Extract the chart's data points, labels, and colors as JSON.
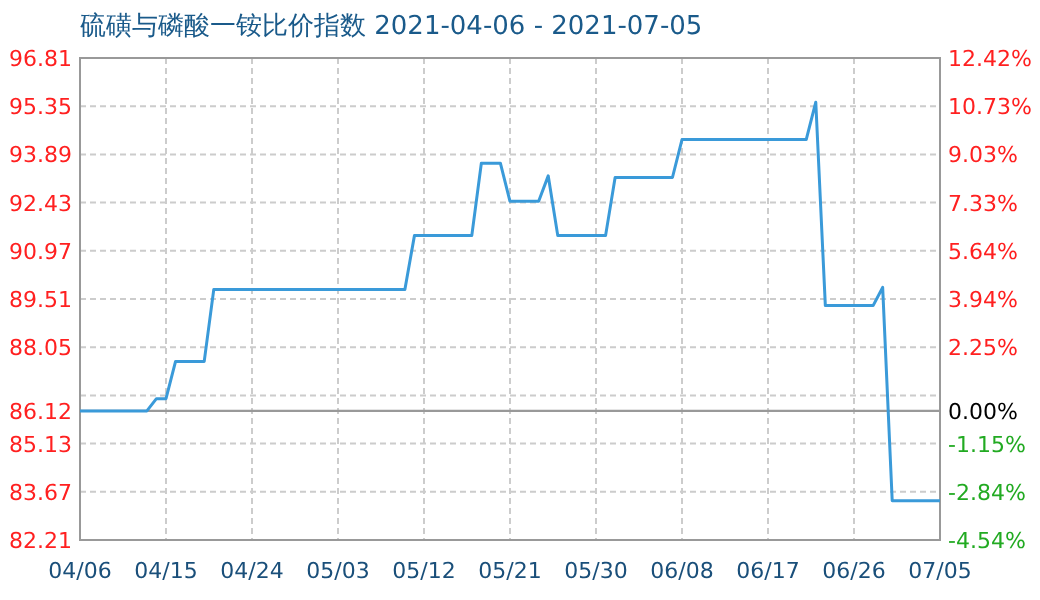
{
  "chart_data": {
    "type": "line",
    "title": "硫磺与磷酸一铵比价指数 2021-04-06 - 2021-07-05",
    "x": [
      "2021-04-06",
      "2021-04-13",
      "2021-04-14",
      "2021-04-15",
      "2021-04-16",
      "2021-04-19",
      "2021-04-20",
      "2021-05-10",
      "2021-05-11",
      "2021-05-17",
      "2021-05-18",
      "2021-05-20",
      "2021-05-21",
      "2021-05-24",
      "2021-05-25",
      "2021-05-26",
      "2021-05-31",
      "2021-06-01",
      "2021-06-07",
      "2021-06-08",
      "2021-06-21",
      "2021-06-22",
      "2021-06-23",
      "2021-06-28",
      "2021-06-29",
      "2021-06-30",
      "2021-07-05"
    ],
    "series": [
      {
        "color": "#3a9ad9",
        "values": [
          86.12,
          86.12,
          86.49,
          86.49,
          87.62,
          87.62,
          89.8,
          89.8,
          91.43,
          91.43,
          93.62,
          93.62,
          92.47,
          92.47,
          93.24,
          91.43,
          91.43,
          93.19,
          93.19,
          94.34,
          94.34,
          95.47,
          89.31,
          89.31,
          89.86,
          83.4,
          83.4
        ]
      }
    ],
    "xlim": [
      "2021-04-06",
      "2021-07-05"
    ],
    "xticks": [
      {
        "value": "2021-04-06",
        "label": "04/06"
      },
      {
        "value": "2021-04-15",
        "label": "04/15"
      },
      {
        "value": "2021-04-24",
        "label": "04/24"
      },
      {
        "value": "2021-05-03",
        "label": "05/03"
      },
      {
        "value": "2021-05-12",
        "label": "05/12"
      },
      {
        "value": "2021-05-21",
        "label": "05/21"
      },
      {
        "value": "2021-05-30",
        "label": "05/30"
      },
      {
        "value": "2021-06-08",
        "label": "06/08"
      },
      {
        "value": "2021-06-17",
        "label": "06/17"
      },
      {
        "value": "2021-06-26",
        "label": "06/26"
      },
      {
        "value": "2021-07-05",
        "label": "07/05"
      }
    ],
    "ylim": [
      82.21,
      96.81
    ],
    "yticks": [
      82.21,
      83.67,
      85.13,
      {
        "value": 86.12,
        "label": "86.12"
      },
      {
        "value": 86.59,
        "label": null
      },
      88.05,
      89.51,
      90.97,
      92.43,
      93.89,
      95.35,
      96.81
    ],
    "y2lim": [
      -4.54,
      12.42
    ],
    "y2ticks": [
      {
        "value": -4.54,
        "label": "-4.54%"
      },
      {
        "value": -2.84,
        "label": "-2.84%"
      },
      {
        "value": -1.15,
        "label": "-1.15%"
      },
      {
        "value": 0,
        "label": "0.00%"
      },
      {
        "value": 2.25,
        "label": "2.25%"
      },
      {
        "value": 3.94,
        "label": "3.94%"
      },
      {
        "value": 5.64,
        "label": "5.64%"
      },
      {
        "value": 7.33,
        "label": "7.33%"
      },
      {
        "value": 9.03,
        "label": "9.03%"
      },
      {
        "value": 10.73,
        "label": "10.73%"
      },
      {
        "value": 12.42,
        "label": "12.42%"
      }
    ],
    "ref_lines": [
      {
        "axis": "y",
        "value": 86.12,
        "color": "#999999"
      }
    ],
    "grid": true
  }
}
